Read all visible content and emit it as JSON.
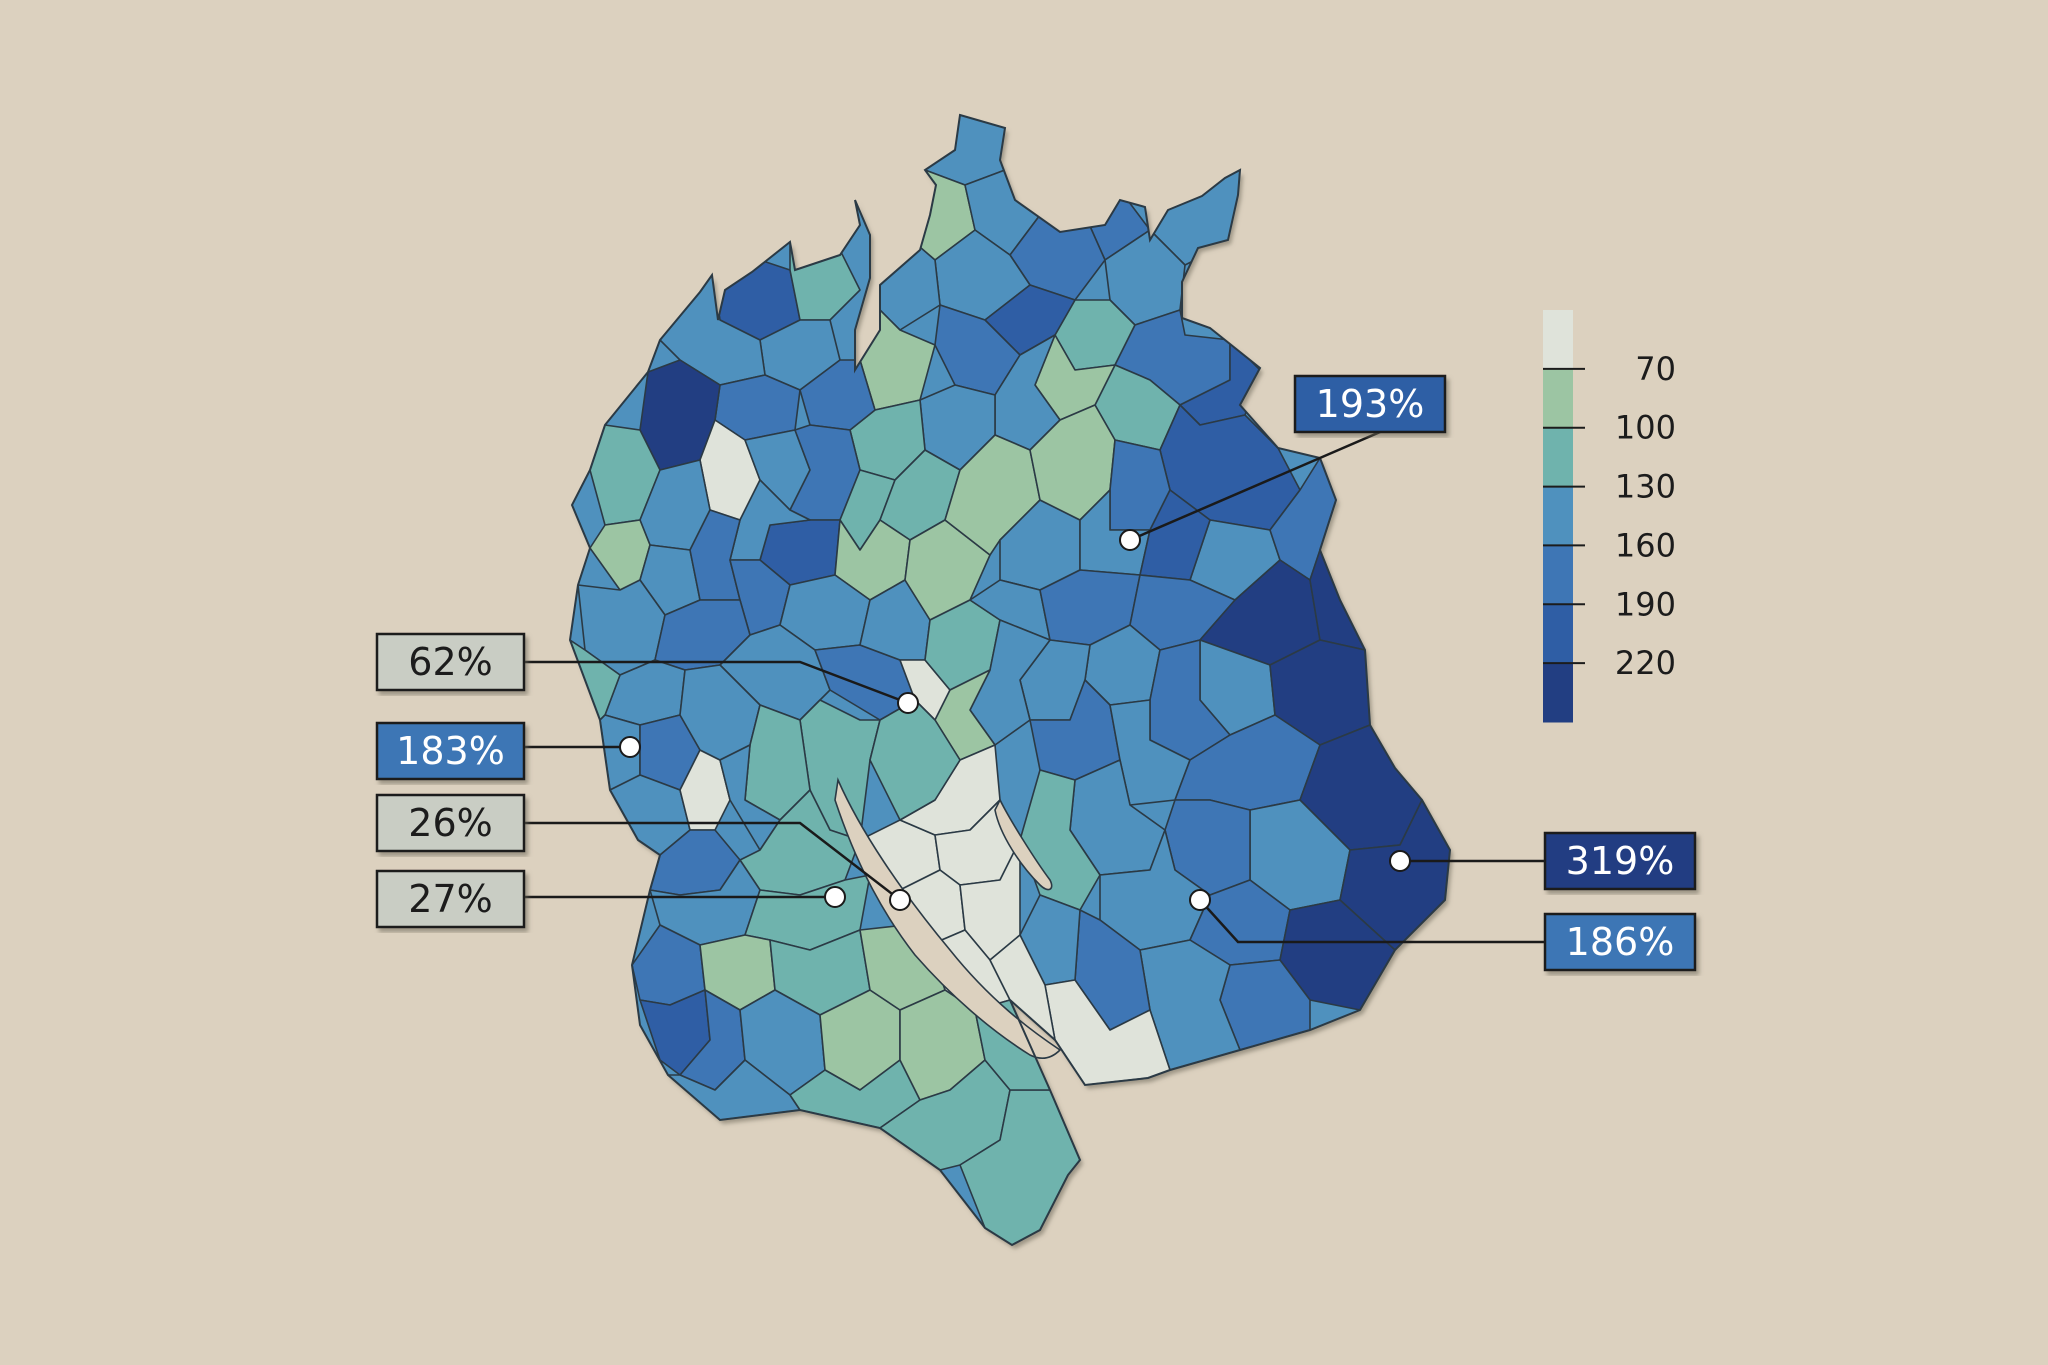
{
  "legend": {
    "ticks": [
      "70",
      "100",
      "130",
      "160",
      "190",
      "220"
    ],
    "colors": [
      "#dfe3da",
      "#9cc5a3",
      "#6fb3ad",
      "#4f91be",
      "#3e76b5",
      "#2f5ea5",
      "#223e82"
    ]
  },
  "callouts": [
    {
      "label": "193%",
      "value": 193,
      "fill": "#2f5ea5",
      "text_color": "#ffffff"
    },
    {
      "label": "62%",
      "value": 62,
      "fill": "#c9cdc4",
      "text_color": "#1c1c1c"
    },
    {
      "label": "183%",
      "value": 183,
      "fill": "#3e76b5",
      "text_color": "#ffffff"
    },
    {
      "label": "26%",
      "value": 26,
      "fill": "#c9cdc4",
      "text_color": "#1c1c1c"
    },
    {
      "label": "27%",
      "value": 27,
      "fill": "#c9cdc4",
      "text_color": "#1c1c1c"
    },
    {
      "label": "319%",
      "value": 319,
      "fill": "#223e82",
      "text_color": "#ffffff"
    },
    {
      "label": "186%",
      "value": 186,
      "fill": "#3e76b5",
      "text_color": "#ffffff"
    }
  ],
  "colors": {
    "background": "#dcd1bf",
    "region_border": "#2b3a45",
    "leader_line": "#1a1a1a",
    "marker": "#ffffff",
    "lake": "#dcd1bf"
  }
}
